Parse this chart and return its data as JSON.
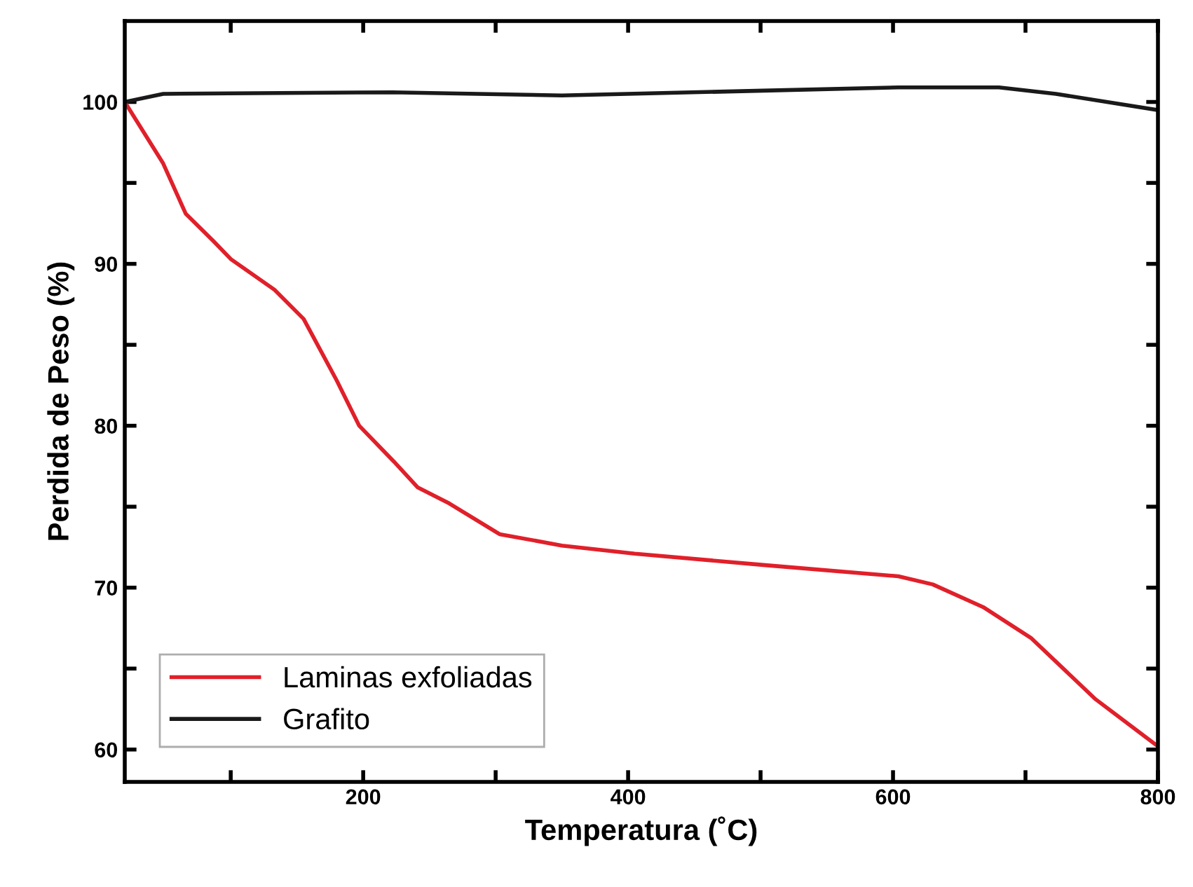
{
  "chart_data": {
    "type": "line",
    "xlabel": "Temperatura (˚C)",
    "ylabel": "Perdida de Peso (%)",
    "xlim": [
      20,
      800
    ],
    "ylim": [
      58,
      105
    ],
    "xticks": [
      {
        "value": 100,
        "label": null
      },
      200,
      {
        "value": 300,
        "label": null
      },
      400,
      {
        "value": 500,
        "label": null
      },
      600,
      {
        "value": 700,
        "label": null
      },
      800
    ],
    "yticks": [
      60,
      {
        "value": 65,
        "label": null
      },
      70,
      {
        "value": 75,
        "label": null
      },
      80,
      {
        "value": 85,
        "label": null
      },
      90,
      {
        "value": 95,
        "label": null
      },
      100
    ],
    "grid": false,
    "legend": "bottom left",
    "line_style": "solid",
    "marker": "none",
    "series": [
      {
        "name": "Laminas exfoliadas",
        "color": "#e0202a",
        "x": [
          20,
          49,
          66,
          87,
          100,
          133,
          155,
          180,
          197,
          223,
          241,
          265,
          303,
          350,
          405,
          502,
          604,
          630,
          668,
          704,
          753,
          800
        ],
        "values": [
          100,
          96.2,
          93.1,
          91.4,
          90.3,
          88.4,
          86.6,
          82.8,
          80.0,
          77.8,
          76.2,
          75.2,
          73.3,
          72.6,
          72.1,
          71.4,
          70.7,
          70.2,
          68.8,
          66.9,
          63.1,
          60.2
        ]
      },
      {
        "name": "Grafito",
        "color": "#1a1a1a",
        "x": [
          20,
          49,
          222,
          350,
          502,
          604,
          680,
          723,
          800
        ],
        "values": [
          100,
          100.5,
          100.6,
          100.4,
          100.7,
          100.9,
          100.9,
          100.5,
          99.5
        ]
      }
    ]
  }
}
